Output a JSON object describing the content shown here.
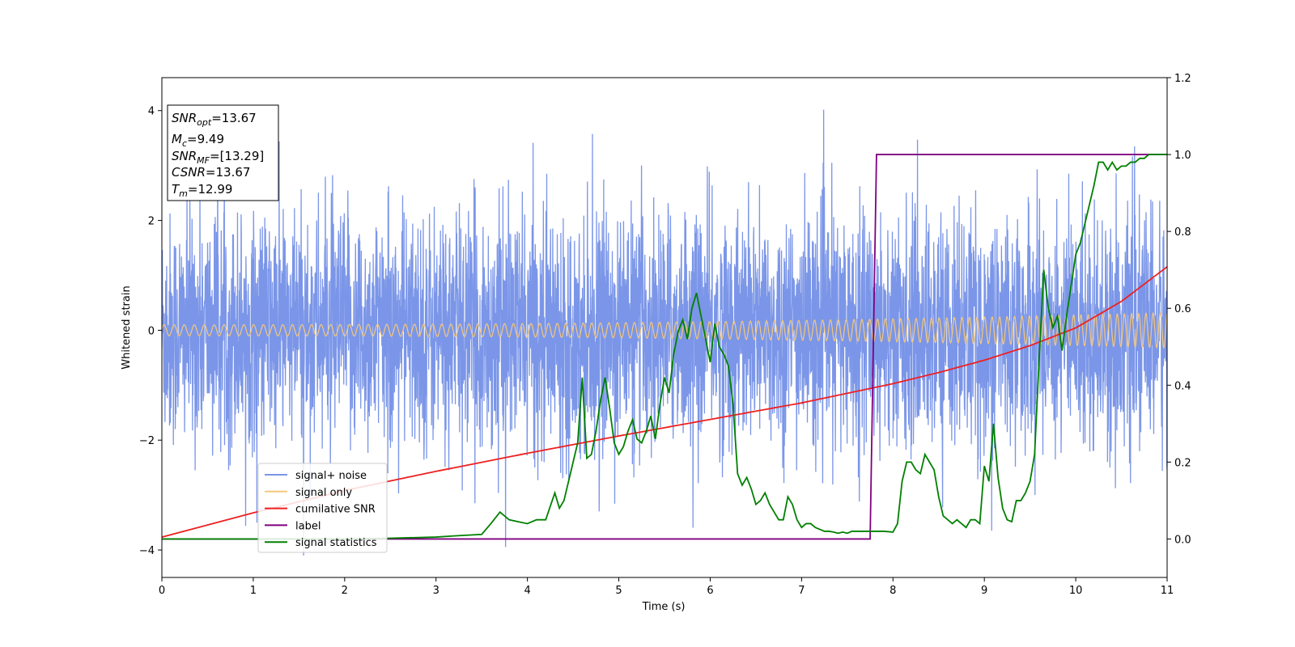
{
  "chart_data": {
    "type": "line",
    "xlabel": "Time (s)",
    "ylabel": "Whitened strain",
    "xlim": [
      0,
      11
    ],
    "ylim_left": [
      -4.5,
      4.6
    ],
    "ylim_right": [
      -0.1,
      1.2
    ],
    "x_ticks": [
      0,
      1,
      2,
      3,
      4,
      5,
      6,
      7,
      8,
      9,
      10,
      11
    ],
    "y_left_ticks": [
      4,
      2,
      0,
      -2,
      -4
    ],
    "y_left_tick_labels": [
      "4",
      "2",
      "0",
      "−2",
      "−4"
    ],
    "y_right_ticks": [
      1.2,
      1.0,
      0.8,
      0.6,
      0.4,
      0.2,
      0.0
    ],
    "y_right_tick_labels": [
      "1.2",
      "1.0",
      "0.8",
      "0.6",
      "0.4",
      "0.2",
      "0.0"
    ],
    "grid": false,
    "legend_position": "lower-left",
    "info_box": {
      "snr_opt": "=13.67",
      "mc": "=9.49",
      "snr_mf": "=[13.29]",
      "csnr": "=13.67",
      "tm": "=12.99"
    },
    "series": [
      {
        "name": "signal+ noise",
        "axis": "left",
        "color": "#7b96e8",
        "description": "dense noisy strain, amplitude about ±2.5 with spikes to ±4",
        "envelope": 2.5
      },
      {
        "name": "signal only",
        "axis": "left",
        "color": "#f5c77a",
        "description": "chirp oscillation with amplitude growing from ~0.1 to ~0.3",
        "amplitude_start": 0.1,
        "amplitude_end": 0.32
      },
      {
        "name": "cumilative SNR",
        "axis": "right",
        "color": "#ee2020",
        "x": [
          0,
          1,
          2,
          3,
          4,
          5,
          6,
          7,
          7.5,
          8,
          8.5,
          9,
          9.5,
          10,
          10.5,
          11
        ],
        "y": [
          0.005,
          0.068,
          0.126,
          0.176,
          0.223,
          0.268,
          0.311,
          0.354,
          0.379,
          0.404,
          0.433,
          0.465,
          0.503,
          0.549,
          0.618,
          0.708
        ]
      },
      {
        "name": "label",
        "axis": "right",
        "color": "#800080",
        "x": [
          0,
          7.75,
          7.82,
          11
        ],
        "y": [
          0.0,
          0.0,
          1.0,
          1.0
        ]
      },
      {
        "name": "signal statistics",
        "axis": "right",
        "color": "#008000",
        "x": [
          0,
          1,
          2,
          2.5,
          3,
          3.2,
          3.5,
          3.6,
          3.7,
          3.8,
          3.9,
          4.0,
          4.1,
          4.2,
          4.3,
          4.35,
          4.4,
          4.45,
          4.5,
          4.55,
          4.6,
          4.65,
          4.7,
          4.75,
          4.8,
          4.85,
          4.9,
          4.95,
          5.0,
          5.05,
          5.1,
          5.15,
          5.2,
          5.25,
          5.3,
          5.35,
          5.4,
          5.45,
          5.5,
          5.55,
          5.6,
          5.65,
          5.7,
          5.75,
          5.8,
          5.85,
          5.9,
          5.95,
          6.0,
          6.05,
          6.1,
          6.15,
          6.2,
          6.25,
          6.3,
          6.35,
          6.4,
          6.45,
          6.5,
          6.55,
          6.6,
          6.65,
          6.7,
          6.75,
          6.8,
          6.85,
          6.9,
          6.95,
          7.0,
          7.05,
          7.1,
          7.15,
          7.2,
          7.25,
          7.3,
          7.35,
          7.4,
          7.45,
          7.5,
          7.55,
          7.6,
          7.7,
          7.8,
          7.9,
          8.0,
          8.05,
          8.1,
          8.15,
          8.2,
          8.25,
          8.3,
          8.35,
          8.4,
          8.45,
          8.5,
          8.55,
          8.6,
          8.65,
          8.7,
          8.75,
          8.8,
          8.85,
          8.9,
          8.95,
          9.0,
          9.05,
          9.1,
          9.15,
          9.2,
          9.25,
          9.3,
          9.35,
          9.4,
          9.45,
          9.5,
          9.55,
          9.6,
          9.65,
          9.7,
          9.75,
          9.8,
          9.85,
          9.9,
          9.95,
          10.0,
          10.05,
          10.1,
          10.15,
          10.2,
          10.25,
          10.3,
          10.35,
          10.4,
          10.45,
          10.5,
          10.55,
          10.6,
          10.65,
          10.7,
          10.75,
          10.8,
          10.85,
          10.9,
          10.95,
          11.0
        ],
        "y": [
          0.0,
          0.0,
          0.0,
          0.002,
          0.005,
          0.008,
          0.012,
          0.04,
          0.07,
          0.05,
          0.045,
          0.04,
          0.05,
          0.05,
          0.12,
          0.08,
          0.1,
          0.15,
          0.2,
          0.25,
          0.42,
          0.21,
          0.22,
          0.28,
          0.36,
          0.42,
          0.34,
          0.25,
          0.22,
          0.24,
          0.28,
          0.31,
          0.26,
          0.25,
          0.28,
          0.32,
          0.26,
          0.35,
          0.42,
          0.38,
          0.48,
          0.54,
          0.57,
          0.52,
          0.6,
          0.64,
          0.58,
          0.52,
          0.46,
          0.56,
          0.5,
          0.48,
          0.45,
          0.35,
          0.17,
          0.14,
          0.16,
          0.13,
          0.09,
          0.1,
          0.12,
          0.09,
          0.07,
          0.05,
          0.05,
          0.11,
          0.09,
          0.05,
          0.03,
          0.04,
          0.04,
          0.03,
          0.025,
          0.02,
          0.02,
          0.018,
          0.015,
          0.018,
          0.015,
          0.02,
          0.02,
          0.02,
          0.02,
          0.02,
          0.018,
          0.04,
          0.15,
          0.2,
          0.2,
          0.18,
          0.17,
          0.22,
          0.2,
          0.18,
          0.11,
          0.06,
          0.05,
          0.04,
          0.05,
          0.04,
          0.03,
          0.05,
          0.05,
          0.04,
          0.19,
          0.15,
          0.3,
          0.16,
          0.08,
          0.05,
          0.045,
          0.1,
          0.1,
          0.12,
          0.15,
          0.22,
          0.47,
          0.7,
          0.6,
          0.55,
          0.58,
          0.49,
          0.58,
          0.66,
          0.74,
          0.77,
          0.82,
          0.87,
          0.92,
          0.98,
          0.98,
          0.96,
          0.98,
          0.96,
          0.97,
          0.97,
          0.98,
          0.98,
          0.99,
          0.99,
          1.0,
          1.0,
          1.0,
          1.0,
          1.0
        ]
      }
    ]
  }
}
